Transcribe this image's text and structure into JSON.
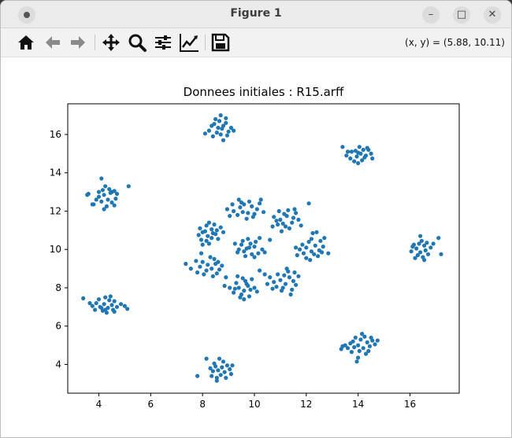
{
  "window": {
    "title": "Figure 1",
    "minimize_glyph": "–",
    "maximize_glyph": "□",
    "close_glyph": "✕"
  },
  "toolbar": {
    "icons": [
      "home-icon",
      "back-arrow-icon",
      "forward-arrow-icon",
      "pan-icon",
      "zoom-icon",
      "configure-subplots-icon",
      "edit-axis-icon",
      "save-icon"
    ],
    "coords": "(x, y) = (5.88, 10.11)"
  },
  "colors": {
    "points": "#1f77b4"
  },
  "chart_data": {
    "type": "scatter",
    "title": "Donnees initiales : R15.arff",
    "xlabel": "",
    "ylabel": "",
    "xlim": [
      2.8,
      17.9
    ],
    "ylim": [
      2.5,
      17.6
    ],
    "xticks": [
      4,
      6,
      8,
      10,
      12,
      14,
      16
    ],
    "yticks": [
      4,
      6,
      8,
      10,
      12,
      14,
      16
    ],
    "grid": false,
    "series": [
      {
        "points": [
          [
            8.45,
            16.55
          ],
          [
            8.75,
            16.3
          ],
          [
            8.8,
            16.45
          ],
          [
            8.55,
            16.1
          ],
          [
            9.0,
            16.15
          ],
          [
            8.65,
            16.7
          ],
          [
            8.9,
            16.6
          ],
          [
            8.25,
            16.2
          ],
          [
            8.6,
            16.35
          ],
          [
            9.1,
            16.35
          ],
          [
            8.7,
            17.0
          ],
          [
            8.95,
            15.95
          ],
          [
            8.4,
            15.9
          ],
          [
            8.8,
            15.7
          ],
          [
            8.1,
            16.05
          ],
          [
            8.5,
            16.8
          ],
          [
            8.9,
            16.85
          ],
          [
            9.2,
            16.2
          ],
          [
            8.35,
            16.45
          ],
          [
            8.7,
            16.0
          ],
          [
            13.75,
            15.1
          ],
          [
            14.05,
            15.35
          ],
          [
            14.3,
            14.9
          ],
          [
            14.2,
            15.2
          ],
          [
            13.95,
            14.85
          ],
          [
            14.0,
            14.5
          ],
          [
            14.4,
            15.2
          ],
          [
            13.6,
            15.1
          ],
          [
            13.4,
            15.35
          ],
          [
            14.15,
            14.65
          ],
          [
            14.5,
            15.0
          ],
          [
            13.9,
            15.15
          ],
          [
            14.25,
            14.8
          ],
          [
            13.7,
            14.75
          ],
          [
            14.35,
            15.3
          ],
          [
            14.1,
            15.0
          ],
          [
            13.85,
            14.6
          ],
          [
            14.55,
            14.75
          ],
          [
            13.55,
            14.9
          ],
          [
            14.0,
            15.05
          ],
          [
            4.2,
            12.85
          ],
          [
            4.35,
            12.6
          ],
          [
            4.1,
            12.5
          ],
          [
            4.5,
            13.0
          ],
          [
            4.15,
            13.1
          ],
          [
            4.0,
            12.75
          ],
          [
            4.65,
            12.65
          ],
          [
            4.3,
            12.25
          ],
          [
            4.45,
            12.95
          ],
          [
            3.8,
            12.35
          ],
          [
            4.6,
            12.3
          ],
          [
            4.25,
            13.3
          ],
          [
            4.5,
            12.45
          ],
          [
            3.6,
            12.9
          ],
          [
            4.7,
            12.9
          ],
          [
            4.0,
            13.0
          ],
          [
            4.4,
            13.15
          ],
          [
            4.2,
            12.1
          ],
          [
            3.9,
            12.6
          ],
          [
            4.6,
            13.05
          ],
          [
            5.15,
            13.3
          ],
          [
            4.1,
            13.7
          ],
          [
            3.75,
            12.35
          ],
          [
            3.55,
            12.85
          ],
          [
            9.2,
            12.0
          ],
          [
            9.45,
            12.2
          ],
          [
            9.75,
            11.9
          ],
          [
            9.6,
            12.35
          ],
          [
            9.9,
            12.25
          ],
          [
            9.35,
            11.8
          ],
          [
            10.1,
            12.1
          ],
          [
            9.55,
            11.95
          ],
          [
            9.95,
            11.7
          ],
          [
            10.2,
            12.4
          ],
          [
            9.15,
            12.35
          ],
          [
            9.8,
            12.5
          ],
          [
            10.35,
            11.95
          ],
          [
            9.4,
            12.6
          ],
          [
            9.05,
            11.75
          ],
          [
            10.0,
            11.85
          ],
          [
            9.7,
            11.6
          ],
          [
            10.25,
            12.6
          ],
          [
            8.95,
            12.1
          ],
          [
            9.5,
            12.45
          ],
          [
            11.0,
            11.55
          ],
          [
            11.25,
            11.75
          ],
          [
            11.45,
            11.4
          ],
          [
            11.15,
            11.85
          ],
          [
            10.9,
            11.3
          ],
          [
            11.6,
            11.9
          ],
          [
            11.35,
            11.1
          ],
          [
            10.75,
            11.7
          ],
          [
            11.5,
            11.65
          ],
          [
            11.2,
            11.2
          ],
          [
            11.7,
            11.55
          ],
          [
            10.95,
            12.0
          ],
          [
            11.3,
            12.05
          ],
          [
            11.05,
            10.95
          ],
          [
            11.8,
            11.25
          ],
          [
            10.85,
            11.5
          ],
          [
            11.55,
            12.1
          ],
          [
            11.1,
            11.35
          ],
          [
            12.1,
            12.4
          ],
          [
            10.7,
            11.2
          ],
          [
            8.0,
            10.9
          ],
          [
            8.2,
            10.7
          ],
          [
            8.35,
            11.05
          ],
          [
            8.15,
            11.25
          ],
          [
            7.95,
            10.5
          ],
          [
            8.5,
            10.8
          ],
          [
            8.25,
            10.3
          ],
          [
            7.9,
            11.1
          ],
          [
            8.45,
            11.3
          ],
          [
            8.6,
            10.55
          ],
          [
            8.1,
            10.95
          ],
          [
            8.35,
            10.6
          ],
          [
            8.7,
            11.15
          ],
          [
            7.85,
            10.75
          ],
          [
            8.25,
            11.4
          ],
          [
            8.55,
            11.0
          ],
          [
            8.0,
            10.25
          ],
          [
            8.4,
            10.85
          ],
          [
            8.8,
            10.9
          ],
          [
            8.15,
            10.45
          ],
          [
            9.5,
            10.25
          ],
          [
            9.7,
            10.05
          ],
          [
            9.85,
            10.3
          ],
          [
            9.6,
            9.9
          ],
          [
            10.0,
            10.15
          ],
          [
            9.4,
            10.0
          ],
          [
            10.15,
            9.8
          ],
          [
            9.75,
            10.55
          ],
          [
            10.3,
            10.0
          ],
          [
            9.9,
            9.75
          ],
          [
            9.55,
            10.45
          ],
          [
            10.05,
            10.4
          ],
          [
            9.35,
            9.85
          ],
          [
            10.4,
            9.85
          ],
          [
            9.8,
            10.1
          ],
          [
            10.6,
            10.5
          ],
          [
            9.25,
            10.3
          ],
          [
            10.2,
            10.6
          ],
          [
            9.65,
            9.65
          ],
          [
            10.0,
            9.6
          ],
          [
            12.0,
            10.1
          ],
          [
            12.2,
            9.9
          ],
          [
            12.35,
            10.2
          ],
          [
            11.9,
            9.8
          ],
          [
            12.5,
            9.95
          ],
          [
            12.1,
            10.4
          ],
          [
            11.75,
            10.0
          ],
          [
            12.45,
            9.65
          ],
          [
            12.65,
            10.15
          ],
          [
            11.85,
            10.25
          ],
          [
            12.3,
            9.75
          ],
          [
            12.6,
            9.85
          ],
          [
            12.0,
            9.55
          ],
          [
            12.85,
            9.8
          ],
          [
            12.55,
            10.45
          ],
          [
            11.65,
            9.7
          ],
          [
            12.2,
            10.55
          ],
          [
            12.4,
            10.9
          ],
          [
            12.7,
            10.6
          ],
          [
            12.25,
            10.85
          ],
          [
            12.15,
            9.45
          ],
          [
            11.6,
            10.1
          ],
          [
            16.25,
            10.05
          ],
          [
            16.4,
            9.85
          ],
          [
            16.55,
            10.2
          ],
          [
            16.3,
            9.7
          ],
          [
            16.6,
            9.95
          ],
          [
            16.15,
            10.25
          ],
          [
            16.45,
            10.45
          ],
          [
            16.7,
            9.75
          ],
          [
            16.05,
            9.9
          ],
          [
            16.5,
            9.6
          ],
          [
            16.35,
            10.3
          ],
          [
            16.8,
            10.1
          ],
          [
            16.2,
            9.55
          ],
          [
            16.65,
            10.35
          ],
          [
            16.9,
            10.3
          ],
          [
            16.1,
            10.15
          ],
          [
            16.4,
            10.7
          ],
          [
            17.1,
            10.6
          ],
          [
            17.2,
            9.75
          ],
          [
            16.55,
            9.45
          ],
          [
            8.2,
            9.2
          ],
          [
            8.35,
            9.0
          ],
          [
            8.0,
            9.35
          ],
          [
            8.5,
            9.25
          ],
          [
            8.15,
            8.9
          ],
          [
            7.9,
            9.1
          ],
          [
            8.45,
            9.5
          ],
          [
            8.65,
            8.95
          ],
          [
            7.75,
            9.4
          ],
          [
            8.3,
            9.6
          ],
          [
            7.8,
            8.8
          ],
          [
            8.6,
            9.35
          ],
          [
            8.05,
            8.7
          ],
          [
            8.75,
            9.15
          ],
          [
            7.55,
            9.0
          ],
          [
            8.4,
            8.6
          ],
          [
            7.95,
            9.8
          ],
          [
            8.55,
            8.75
          ],
          [
            8.9,
            8.55
          ],
          [
            7.35,
            9.25
          ],
          [
            9.4,
            8.0
          ],
          [
            9.6,
            7.85
          ],
          [
            9.75,
            8.1
          ],
          [
            9.5,
            7.65
          ],
          [
            9.3,
            8.25
          ],
          [
            9.85,
            7.9
          ],
          [
            9.65,
            8.35
          ],
          [
            9.2,
            7.75
          ],
          [
            10.0,
            8.0
          ],
          [
            9.45,
            7.5
          ],
          [
            9.8,
            7.55
          ],
          [
            9.55,
            8.5
          ],
          [
            9.05,
            8.0
          ],
          [
            10.1,
            7.8
          ],
          [
            9.7,
            8.2
          ],
          [
            9.35,
            8.6
          ],
          [
            8.85,
            8.1
          ],
          [
            9.9,
            8.45
          ],
          [
            9.25,
            7.95
          ],
          [
            9.6,
            7.4
          ],
          [
            11.0,
            8.4
          ],
          [
            11.2,
            8.2
          ],
          [
            11.35,
            8.55
          ],
          [
            11.1,
            8.0
          ],
          [
            11.5,
            8.35
          ],
          [
            10.9,
            8.7
          ],
          [
            11.3,
            8.85
          ],
          [
            10.75,
            8.3
          ],
          [
            11.6,
            8.15
          ],
          [
            11.15,
            8.65
          ],
          [
            10.6,
            8.55
          ],
          [
            11.45,
            7.9
          ],
          [
            11.05,
            7.85
          ],
          [
            10.85,
            8.05
          ],
          [
            11.7,
            8.6
          ],
          [
            10.5,
            8.2
          ],
          [
            11.25,
            9.0
          ],
          [
            10.4,
            8.7
          ],
          [
            10.7,
            7.95
          ],
          [
            10.2,
            8.9
          ],
          [
            11.55,
            8.8
          ],
          [
            11.4,
            7.65
          ],
          [
            4.05,
            7.0
          ],
          [
            4.2,
            7.15
          ],
          [
            4.35,
            6.95
          ],
          [
            4.5,
            7.1
          ],
          [
            3.9,
            7.2
          ],
          [
            4.15,
            6.8
          ],
          [
            4.6,
            7.3
          ],
          [
            4.4,
            7.35
          ],
          [
            3.75,
            7.05
          ],
          [
            4.7,
            7.0
          ],
          [
            4.25,
            7.5
          ],
          [
            4.0,
            7.4
          ],
          [
            4.85,
            7.15
          ],
          [
            3.85,
            6.85
          ],
          [
            4.55,
            6.85
          ],
          [
            4.3,
            6.7
          ],
          [
            5.0,
            7.05
          ],
          [
            3.65,
            7.2
          ],
          [
            4.45,
            7.55
          ],
          [
            4.1,
            6.95
          ],
          [
            5.1,
            6.9
          ],
          [
            3.4,
            7.45
          ],
          [
            4.6,
            6.75
          ],
          [
            4.25,
            6.85
          ],
          [
            14.0,
            5.0
          ],
          [
            14.2,
            4.85
          ],
          [
            14.35,
            5.15
          ],
          [
            14.1,
            5.3
          ],
          [
            13.85,
            4.9
          ],
          [
            14.45,
            4.95
          ],
          [
            14.25,
            5.45
          ],
          [
            13.7,
            5.1
          ],
          [
            14.55,
            5.25
          ],
          [
            14.05,
            4.7
          ],
          [
            13.9,
            5.4
          ],
          [
            14.4,
            4.7
          ],
          [
            13.6,
            4.85
          ],
          [
            14.65,
            5.05
          ],
          [
            14.15,
            5.6
          ],
          [
            13.75,
            4.65
          ],
          [
            14.3,
            4.55
          ],
          [
            13.5,
            5.0
          ],
          [
            14.0,
            4.35
          ],
          [
            13.95,
            4.15
          ],
          [
            14.75,
            5.25
          ],
          [
            13.35,
            4.8
          ],
          [
            13.4,
            4.95
          ],
          [
            14.5,
            5.4
          ],
          [
            13.8,
            5.2
          ],
          [
            8.6,
            3.7
          ],
          [
            8.75,
            3.85
          ],
          [
            8.85,
            3.6
          ],
          [
            8.5,
            3.9
          ],
          [
            8.95,
            3.95
          ],
          [
            8.4,
            3.65
          ],
          [
            8.7,
            3.45
          ],
          [
            9.05,
            3.75
          ],
          [
            8.55,
            3.3
          ],
          [
            8.3,
            3.8
          ],
          [
            8.8,
            4.15
          ],
          [
            9.1,
            3.5
          ],
          [
            8.45,
            4.05
          ],
          [
            8.65,
            4.3
          ],
          [
            8.35,
            3.4
          ],
          [
            8.9,
            3.3
          ],
          [
            8.15,
            4.3
          ],
          [
            8.55,
            3.15
          ],
          [
            7.8,
            3.4
          ],
          [
            9.15,
            3.95
          ]
        ]
      }
    ]
  }
}
